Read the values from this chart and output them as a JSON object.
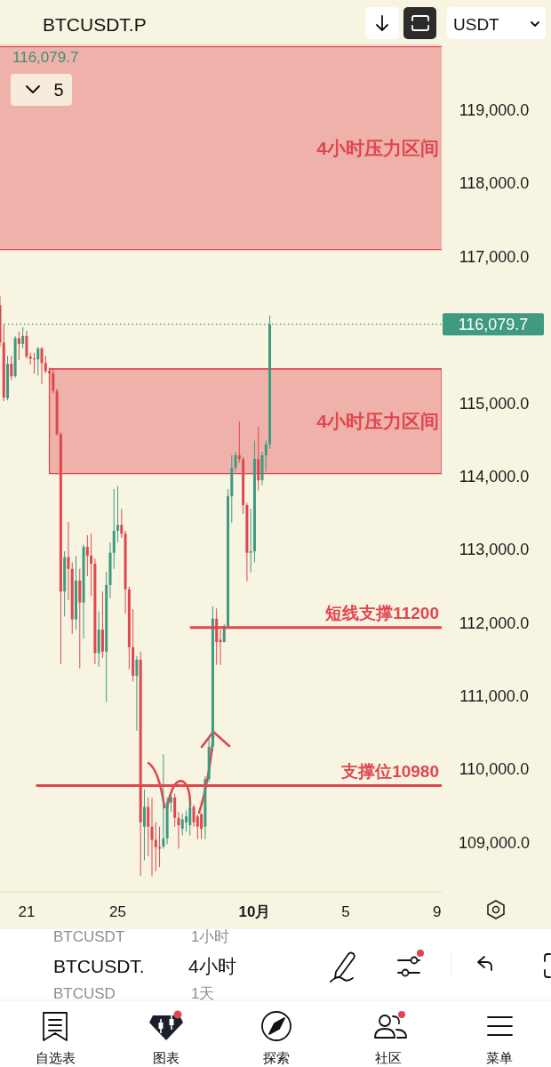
{
  "chart_data": {
    "type": "candlestick",
    "title": "BTCUSDT.P",
    "subtitle": "4小时",
    "xlim": [
      "--09-19T20:00",
      "--10-09T05:00"
    ],
    "xticks": [
      {
        "value": "--09-21",
        "label": "21"
      },
      {
        "value": "--09-25",
        "label": "25"
      },
      {
        "value": "--10-01",
        "label": "10月"
      },
      {
        "value": "--10-05",
        "label": "5"
      },
      {
        "value": "--10-09",
        "label": "9"
      }
    ],
    "ylim": [
      108330,
      119900
    ],
    "yticks": [
      {
        "value": 109000,
        "label": "109,000.0"
      },
      {
        "value": 110000,
        "label": "110,000.0"
      },
      {
        "value": 111000,
        "label": "111,000.0"
      },
      {
        "value": 112000,
        "label": "112,000.0"
      },
      {
        "value": 113000,
        "label": "113,000.0"
      },
      {
        "value": 114000,
        "label": "114,000.0"
      },
      {
        "value": 115000,
        "label": "115,000.0"
      },
      {
        "value": 117000,
        "label": "117,000.0"
      },
      {
        "value": 118000,
        "label": "118,000.0"
      },
      {
        "value": 119000,
        "label": "119,000.0"
      }
    ],
    "bands": [
      {
        "axis": "y",
        "from": 117100,
        "to": 119870,
        "label": "4小时压力区间",
        "color": "#e0464e"
      }
    ],
    "series": [
      {
        "type": "line",
        "name": "4小时压力区间",
        "color": "#e0464e",
        "x": [
          "--09-22T00:00",
          "--10-09T05:00"
        ],
        "values": [
          115470,
          115470
        ],
        "lower": [
          114040,
          114040
        ],
        "upper": [
          115470,
          115470
        ]
      },
      {
        "x": [
          "--09-19T20:00",
          "--09-20T00:00",
          "--09-20T04:00",
          "--09-20T08:00",
          "--09-20T12:00",
          "--09-20T16:00",
          "--09-20T20:00",
          "--09-21T00:00",
          "--09-21T04:00",
          "--09-21T08:00",
          "--09-21T12:00",
          "--09-21T16:00",
          "--09-21T20:00",
          "--09-22T00:00",
          "--09-22T04:00",
          "--09-22T08:00",
          "--09-22T12:00",
          "--09-22T16:00",
          "--09-22T20:00",
          "--09-23T00:00",
          "--09-23T04:00",
          "--09-23T08:00",
          "--09-23T12:00",
          "--09-23T16:00",
          "--09-23T20:00",
          "--09-24T00:00",
          "--09-24T04:00",
          "--09-24T08:00",
          "--09-24T12:00",
          "--09-24T16:00",
          "--09-24T20:00",
          "--09-25T00:00",
          "--09-25T04:00",
          "--09-25T08:00",
          "--09-25T12:00",
          "--09-25T16:00",
          "--09-25T20:00",
          "--09-26T00:00",
          "--09-26T04:00",
          "--09-26T08:00",
          "--09-26T12:00",
          "--09-26T16:00",
          "--09-26T20:00",
          "--09-27T00:00",
          "--09-27T04:00",
          "--09-27T08:00",
          "--09-27T12:00",
          "--09-27T16:00",
          "--09-27T20:00",
          "--09-28T00:00",
          "--09-28T04:00",
          "--09-28T08:00",
          "--09-28T12:00",
          "--09-28T16:00",
          "--09-28T20:00",
          "--09-29T00:00",
          "--09-29T04:00",
          "--09-29T08:00",
          "--09-29T12:00",
          "--09-29T16:00",
          "--09-29T20:00",
          "--09-30T00:00",
          "--09-30T04:00",
          "--09-30T08:00",
          "--09-30T12:00",
          "--09-30T16:00",
          "--09-30T20:00",
          "--10-01T00:00",
          "--10-01T04:00",
          "--10-01T08:00",
          "--10-01T12:00",
          "--10-01T16:00"
        ],
        "ohlc": [
          [
            116340,
            116460,
            115770,
            115830
          ],
          [
            115830,
            116080,
            115030,
            115080
          ],
          [
            115070,
            115650,
            115040,
            115540
          ],
          [
            115540,
            115650,
            115320,
            115370
          ],
          [
            115370,
            115920,
            115350,
            115890
          ],
          [
            115890,
            115980,
            115590,
            115810
          ],
          [
            115810,
            116040,
            115750,
            115920
          ],
          [
            115920,
            115990,
            115610,
            115640
          ],
          [
            115640,
            115690,
            115530,
            115610
          ],
          [
            115610,
            115690,
            115410,
            115600
          ],
          [
            115600,
            115770,
            115380,
            115750
          ],
          [
            115750,
            115770,
            115260,
            115550
          ],
          [
            115550,
            115650,
            115410,
            115440
          ],
          [
            115440,
            115490,
            115320,
            115410
          ],
          [
            115410,
            115460,
            115140,
            115170
          ],
          [
            115170,
            115200,
            114560,
            114580
          ],
          [
            114580,
            114610,
            111440,
            112430
          ],
          [
            112430,
            112980,
            112090,
            112900
          ],
          [
            112900,
            113380,
            112310,
            112740
          ],
          [
            112740,
            112830,
            111850,
            112050
          ],
          [
            112050,
            112920,
            111910,
            112580
          ],
          [
            112580,
            112740,
            111380,
            112280
          ],
          [
            112280,
            113070,
            111790,
            113040
          ],
          [
            113040,
            113200,
            112640,
            112920
          ],
          [
            112920,
            113220,
            112370,
            112810
          ],
          [
            112810,
            112880,
            111440,
            111590
          ],
          [
            111590,
            112160,
            111400,
            111910
          ],
          [
            111910,
            112430,
            111520,
            111610
          ],
          [
            111610,
            112700,
            110920,
            112520
          ],
          [
            112520,
            113100,
            112340,
            112960
          ],
          [
            112960,
            113830,
            112740,
            113260
          ],
          [
            113260,
            113870,
            113100,
            113340
          ],
          [
            113340,
            113560,
            113160,
            113220
          ],
          [
            113220,
            113260,
            112130,
            112460
          ],
          [
            112460,
            112500,
            111370,
            111670
          ],
          [
            111670,
            112190,
            111200,
            111280
          ],
          [
            111280,
            111550,
            110530,
            111500
          ],
          [
            111500,
            111610,
            108550,
            109280
          ],
          [
            109220,
            109730,
            108760,
            109490
          ],
          [
            109490,
            109620,
            108820,
            109220
          ],
          [
            109220,
            109610,
            108540,
            109040
          ],
          [
            109040,
            109280,
            108610,
            108940
          ],
          [
            108940,
            109220,
            108670,
            108920
          ],
          [
            108950,
            110210,
            108920,
            109060
          ],
          [
            109060,
            109620,
            108980,
            109550
          ],
          [
            109550,
            109670,
            109420,
            109620
          ],
          [
            109620,
            109670,
            109220,
            109340
          ],
          [
            109340,
            109420,
            108920,
            109240
          ],
          [
            109190,
            109400,
            109100,
            109320
          ],
          [
            109280,
            109440,
            109150,
            109360
          ],
          [
            109240,
            109610,
            109100,
            109490
          ],
          [
            109490,
            109520,
            109220,
            109280
          ],
          [
            109360,
            109390,
            109050,
            109220
          ],
          [
            109390,
            109410,
            109050,
            109190
          ],
          [
            109220,
            109910,
            109050,
            109870
          ],
          [
            109870,
            110430,
            109830,
            110310
          ],
          [
            110310,
            112230,
            110250,
            112060
          ],
          [
            112060,
            112200,
            111430,
            111740
          ],
          [
            111770,
            111910,
            111430,
            111740
          ],
          [
            111740,
            111990,
            111740,
            111960
          ],
          [
            111960,
            113830,
            111940,
            113730
          ],
          [
            113730,
            114290,
            113370,
            114120
          ],
          [
            114120,
            114340,
            114070,
            114290
          ],
          [
            114290,
            114750,
            114190,
            114240
          ],
          [
            114240,
            114270,
            113490,
            113610
          ],
          [
            113610,
            113640,
            112570,
            112960
          ],
          [
            112960,
            113560,
            112690,
            112980
          ],
          [
            112980,
            114490,
            112830,
            114240
          ],
          [
            114240,
            114680,
            113810,
            113950
          ],
          [
            113950,
            114340,
            113880,
            114290
          ],
          [
            114290,
            114490,
            114070,
            114440
          ],
          [
            114440,
            116200,
            114380,
            116079.7
          ]
        ],
        "colors": [
          "#e0464e",
          "#e0464e",
          "#3f9a80",
          "#e0464e",
          "#3f9a80",
          "#e0464e",
          "#3f9a80",
          "#e0464e",
          "#e0464e",
          "#e0464e",
          "#3f9a80",
          "#e0464e",
          "#e0464e",
          "#e0464e",
          "#e0464e",
          "#e0464e",
          "#e0464e",
          "#3f9a80",
          "#e0464e",
          "#e0464e",
          "#3f9a80",
          "#e0464e",
          "#3f9a80",
          "#e0464e",
          "#e0464e",
          "#e0464e",
          "#3f9a80",
          "#e0464e",
          "#3f9a80",
          "#3f9a80",
          "#3f9a80",
          "#3f9a80",
          "#e0464e",
          "#e0464e",
          "#e0464e",
          "#e0464e",
          "#3f9a80",
          "#e0464e",
          "#3f9a80",
          "#e0464e",
          "#e0464e",
          "#e0464e",
          "#e0464e",
          "#3f9a80",
          "#3f9a80",
          "#3f9a80",
          "#e0464e",
          "#e0464e",
          "#3f9a80",
          "#3f9a80",
          "#3f9a80",
          "#e0464e",
          "#e0464e",
          "#e0464e",
          "#3f9a80",
          "#3f9a80",
          "#3f9a80",
          "#e0464e",
          "#e0464e",
          "#3f9a80",
          "#3f9a80",
          "#3f9a80",
          "#3f9a80",
          "#e0464e",
          "#e0464e",
          "#e0464e",
          "#3f9a80",
          "#3f9a80",
          "#e0464e",
          "#3f9a80",
          "#3f9a80",
          "#3f9a80"
        ]
      },
      {
        "type": "line",
        "name": "短线支撑11200",
        "color": "#e0464e",
        "x": [
          "--09-28T04:00",
          "--10-09T05:00"
        ],
        "values": [
          111940,
          111940
        ]
      },
      {
        "type": "line",
        "name": "支撑位10980",
        "color": "#e0464e",
        "x": [
          "--09-21T10:00",
          "--10-09T05:00"
        ],
        "values": [
          109780,
          109780
        ]
      }
    ],
    "ref_lines": [
      {
        "axis": "y",
        "value": 116079.7,
        "label": "116,079.7",
        "color": "#3f9a80",
        "line_style": "dotted"
      }
    ],
    "annotations": [
      "116,079.7",
      "5",
      "USDT",
      "BTCUSDT.",
      "BTCUSDT",
      "1小时",
      "BTCUSD",
      "1天",
      "自选表",
      "图表",
      "探索",
      "社区",
      "菜单"
    ]
  }
}
